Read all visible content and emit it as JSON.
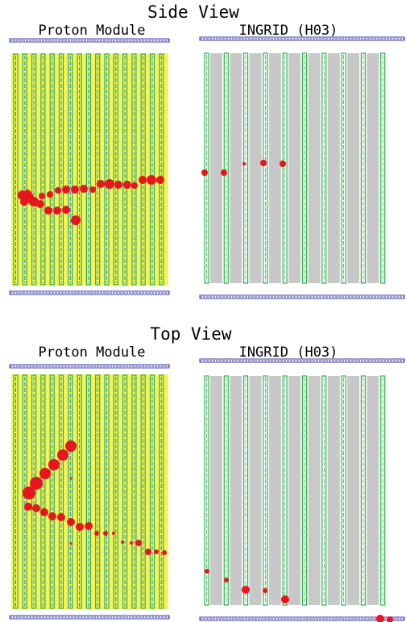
{
  "colors": {
    "pm_fill": "#f4f45a",
    "pm_bar": "#2bb04a",
    "pm_bar_inner": "#2f7de0",
    "ingrid_absorber": "#c8c8c8",
    "ingrid_bar": "#2bb04a",
    "veto": "#3a3ab0",
    "hit": "#e8141e",
    "text": "#000000"
  },
  "views": [
    {
      "id": "side",
      "title": "Side View",
      "pm_label": "Proton Module",
      "ingrid_label": "INGRID (H03)"
    },
    {
      "id": "top",
      "title": "Top View",
      "pm_label": "Proton Module",
      "ingrid_label": "INGRID (H03)"
    }
  ]
}
